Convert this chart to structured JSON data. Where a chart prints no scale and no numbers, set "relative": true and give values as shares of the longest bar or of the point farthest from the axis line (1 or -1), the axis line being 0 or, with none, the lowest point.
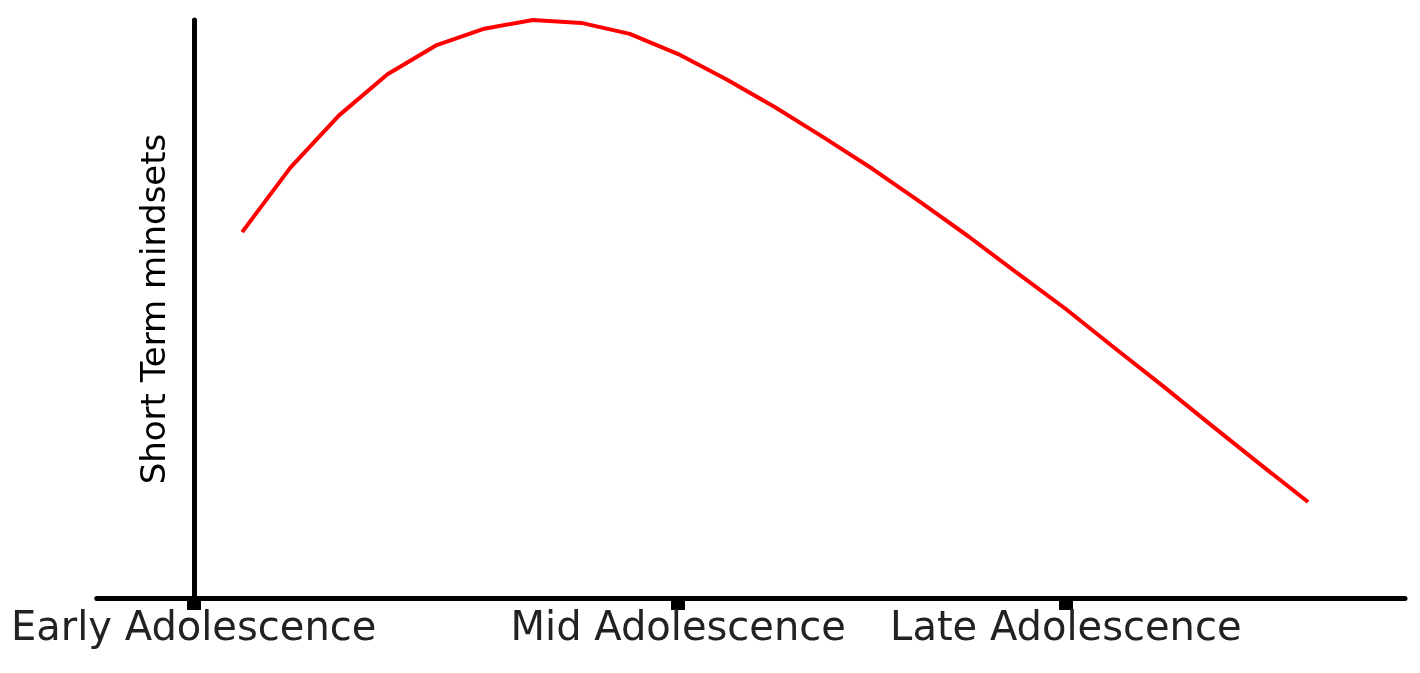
{
  "chart_data": {
    "type": "line",
    "relative": true,
    "ylabel": "Short Term mindsets",
    "categories": [
      null,
      null,
      "Early Adolescence",
      null,
      null,
      null,
      null,
      null,
      null,
      null,
      null,
      null,
      "Mid Adolescence",
      null,
      null,
      null,
      null,
      null,
      null,
      null,
      "Late Adolescence",
      null,
      null,
      null,
      null,
      null,
      null,
      null
    ],
    "series": [
      {
        "color": "#ff0000",
        "values": [
          null,
          null,
          null,
          0.633,
          0.745,
          0.835,
          0.906,
          0.956,
          0.985,
          1.0,
          0.995,
          0.976,
          0.941,
          0.897,
          0.849,
          0.797,
          0.743,
          0.685,
          0.625,
          0.562,
          0.5,
          0.433,
          0.367,
          0.299,
          0.232,
          0.166,
          null,
          null
        ]
      }
    ]
  }
}
